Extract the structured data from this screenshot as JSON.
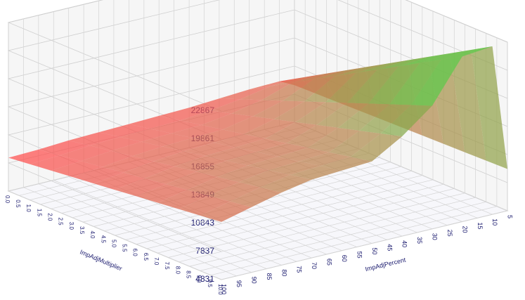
{
  "chart_data": {
    "type": "surface3d",
    "xlabel": "ImpAdjMultiplier",
    "ylabel": "ImpAdjPercent",
    "x": [
      0,
      1,
      2,
      3,
      4,
      5,
      6,
      7,
      8,
      9,
      10
    ],
    "y": [
      100,
      90,
      80,
      70,
      60,
      50,
      40,
      30,
      20,
      10,
      5
    ],
    "z": [
      [
        8400,
        8500,
        8700,
        8800,
        8900,
        9000,
        9100,
        9300,
        9500,
        9600,
        8800
      ],
      [
        8660,
        8830,
        9090,
        9240,
        9350,
        9460,
        9740,
        10170,
        10800,
        10920,
        8850
      ],
      [
        8920,
        9160,
        9480,
        9680,
        9800,
        9920,
        10380,
        11040,
        12100,
        12240,
        8900
      ],
      [
        9180,
        9490,
        9870,
        10120,
        10250,
        10380,
        11020,
        11910,
        13400,
        13560,
        8950
      ],
      [
        9440,
        9820,
        10260,
        10560,
        10700,
        10840,
        11660,
        12780,
        14700,
        14880,
        9000
      ],
      [
        9700,
        10150,
        10650,
        11000,
        11150,
        11300,
        12300,
        13650,
        16000,
        16200,
        9050
      ],
      [
        9960,
        10480,
        11040,
        11440,
        11600,
        11760,
        12940,
        14520,
        17300,
        17520,
        9100
      ],
      [
        10220,
        10810,
        11430,
        11880,
        12050,
        12220,
        13580,
        15390,
        18600,
        18840,
        9150
      ],
      [
        10480,
        11140,
        11820,
        12320,
        12500,
        12680,
        14220,
        16260,
        19900,
        20160,
        9200
      ],
      [
        10740,
        11470,
        12210,
        12760,
        12950,
        13140,
        14860,
        17130,
        21200,
        21480,
        9250
      ],
      [
        11000,
        11800,
        12600,
        13200,
        13400,
        13600,
        15500,
        18000,
        22500,
        22800,
        9300
      ]
    ],
    "xlim": [
      0,
      10
    ],
    "ylim": [
      100,
      5
    ],
    "zlim": [
      4831,
      22867
    ],
    "xticks": [
      {
        "value": 0,
        "label": "0.0"
      },
      0.5,
      {
        "value": 1,
        "label": "1.0"
      },
      1.5,
      {
        "value": 2,
        "label": "2.0"
      },
      2.5,
      {
        "value": 3,
        "label": "3.0"
      },
      3.5,
      {
        "value": 4,
        "label": "4.0"
      },
      4.5,
      {
        "value": 5,
        "label": "5.0"
      },
      5.5,
      {
        "value": 6,
        "label": "6.0"
      },
      6.5,
      {
        "value": 7,
        "label": "7.0"
      },
      7.5,
      {
        "value": 8,
        "label": "8.0"
      },
      8.5,
      {
        "value": 9,
        "label": "9.0"
      },
      9.5,
      {
        "value": 10,
        "label": "10.0"
      }
    ],
    "yticks": [
      100,
      95,
      90,
      85,
      80,
      75,
      70,
      65,
      60,
      55,
      50,
      45,
      40,
      35,
      30,
      25,
      20,
      15,
      10,
      5
    ],
    "zticks": [
      22867,
      19861,
      16855,
      13849,
      10843,
      7837,
      4831
    ],
    "low_color": "#ff4d4d",
    "high_color": "#5ccb4a"
  }
}
